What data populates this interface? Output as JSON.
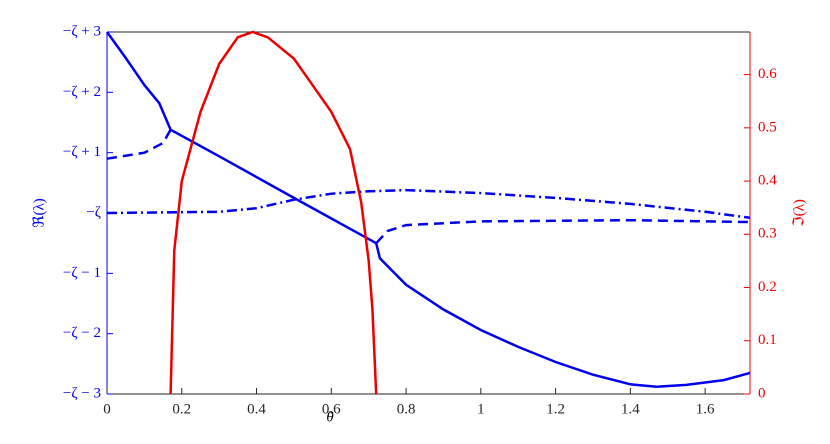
{
  "chart_data": {
    "type": "line",
    "x_label": "θ",
    "y_label": "ℜ(λ)",
    "y2_label": "ℑ(λ)",
    "xlim": [
      0,
      1.72
    ],
    "xticks": [
      0,
      0.2,
      0.4,
      0.6,
      0.8,
      1,
      1.2,
      1.4,
      1.6
    ],
    "ylim": [
      -3,
      3
    ],
    "yticks": [
      {
        "value": -3,
        "label": "−ζ − 3"
      },
      {
        "value": -2,
        "label": "−ζ − 2"
      },
      {
        "value": -1,
        "label": "−ζ − 1"
      },
      {
        "value": 0,
        "label": "−ζ"
      },
      {
        "value": 1,
        "label": "−ζ + 1"
      },
      {
        "value": 2,
        "label": "−ζ + 2"
      },
      {
        "value": 3,
        "label": "−ζ + 3"
      }
    ],
    "y2lim": [
      0,
      0.68
    ],
    "y2ticks": [
      0,
      0.1,
      0.2,
      0.3,
      0.4,
      0.5,
      0.6
    ],
    "y_color": "#0000ee",
    "y2_color": "#ee0000",
    "series": [
      {
        "color": "#0000ee",
        "line_style": "solid",
        "x": [
          0,
          0.05,
          0.1,
          0.14,
          0.17,
          0.3,
          0.5,
          0.72,
          0.73,
          0.8,
          0.9,
          1.0,
          1.1,
          1.2,
          1.3,
          1.4,
          1.47,
          1.55,
          1.65,
          1.72
        ],
        "values": [
          3,
          2.57,
          2.12,
          1.82,
          1.38,
          0.94,
          0.25,
          -0.5,
          -0.75,
          -1.19,
          -1.6,
          -1.94,
          -2.22,
          -2.47,
          -2.68,
          -2.84,
          -2.88,
          -2.85,
          -2.77,
          -2.65
        ]
      },
      {
        "color": "#0000ee",
        "line_style": "dashed",
        "x": [
          0,
          0.1,
          0.15,
          0.17,
          null,
          0.72,
          0.75,
          0.8,
          1.0,
          1.4,
          1.72
        ],
        "values": [
          0.9,
          1.0,
          1.16,
          1.38,
          null,
          -0.5,
          -0.3,
          -0.2,
          -0.14,
          -0.12,
          -0.15
        ]
      },
      {
        "color": "#0000ee",
        "line_style": "dashdot",
        "x": [
          0,
          0.3,
          0.4,
          0.5,
          0.6,
          0.7,
          0.8,
          1.0,
          1.2,
          1.4,
          1.6,
          1.72
        ],
        "values": [
          0,
          0.02,
          0.08,
          0.22,
          0.32,
          0.36,
          0.38,
          0.33,
          0.25,
          0.15,
          0.02,
          -0.08
        ]
      },
      {
        "color": "#ee0000",
        "line_style": "solid",
        "axis": "y2",
        "x": [
          0.17,
          0.18,
          0.2,
          0.25,
          0.3,
          0.35,
          0.39,
          0.43,
          0.5,
          0.55,
          0.6,
          0.65,
          0.68,
          0.7,
          0.71,
          0.72
        ],
        "values": [
          0,
          0.27,
          0.4,
          0.53,
          0.62,
          0.67,
          0.68,
          0.67,
          0.63,
          0.58,
          0.53,
          0.46,
          0.36,
          0.25,
          0.16,
          0
        ]
      }
    ]
  }
}
